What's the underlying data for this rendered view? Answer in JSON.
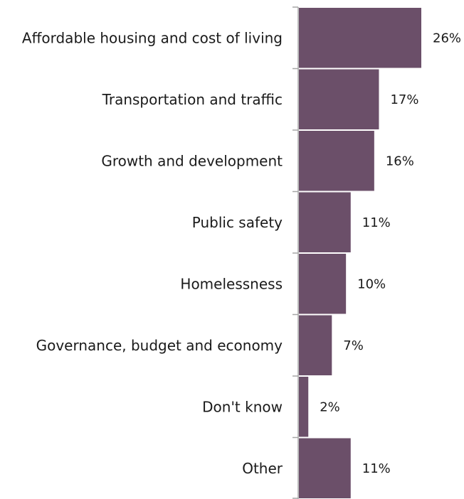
{
  "chart_data": {
    "type": "bar",
    "orientation": "horizontal",
    "categories": [
      "Affordable housing and cost of living",
      "Transportation and traffic",
      "Growth and development",
      "Public safety",
      "Homelessness",
      "Governance, budget and economy",
      "Don't know",
      "Other"
    ],
    "values": [
      26,
      17,
      16,
      11,
      10,
      7,
      2,
      11
    ],
    "value_labels": [
      "26%",
      "17%",
      "16%",
      "11%",
      "10%",
      "7%",
      "2%",
      "11%"
    ],
    "unit": "%",
    "xlim": [
      0,
      26
    ],
    "grid": false,
    "bar_color": "#6b4f69",
    "axis_color": "#a6a6a6"
  }
}
